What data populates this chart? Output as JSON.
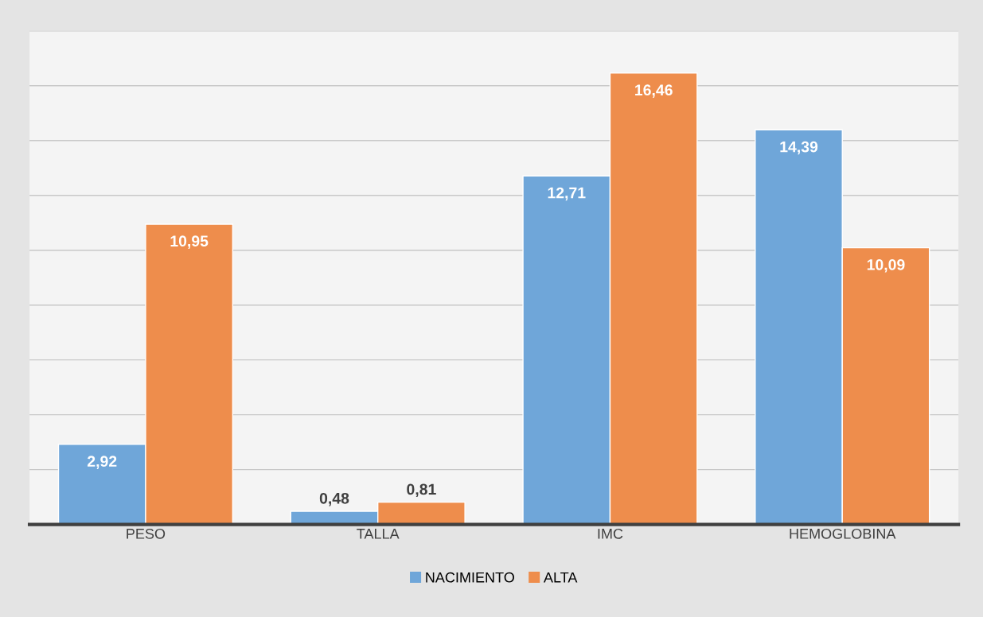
{
  "chart_data": {
    "type": "bar",
    "categories": [
      "PESO",
      "TALLA",
      "IMC",
      "HEMOGLOBINA"
    ],
    "series": [
      {
        "name": "NACIMIENTO",
        "color": "#6fa6d9",
        "values": [
          2.92,
          0.48,
          12.71,
          14.39
        ],
        "value_labels": [
          "2,92",
          "0,48",
          "12,71",
          "14,39"
        ]
      },
      {
        "name": "ALTA",
        "color": "#ee8d4c",
        "values": [
          10.95,
          0.81,
          16.46,
          10.09
        ],
        "value_labels": [
          "10,95",
          "0,81",
          "16,46",
          "10,09"
        ]
      }
    ],
    "ylim": [
      0,
      18
    ],
    "yticks": [
      {
        "value": 0,
        "label": null
      },
      {
        "value": 2,
        "label": null
      },
      {
        "value": 4,
        "label": null
      },
      {
        "value": 6,
        "label": null
      },
      {
        "value": 8,
        "label": null
      },
      {
        "value": 10,
        "label": null
      },
      {
        "value": 12,
        "label": null
      },
      {
        "value": 14,
        "label": null
      },
      {
        "value": 16,
        "label": null
      },
      {
        "value": 18,
        "label": null
      }
    ],
    "tick_labels": "x",
    "grid": "y",
    "legend": "bottom"
  }
}
